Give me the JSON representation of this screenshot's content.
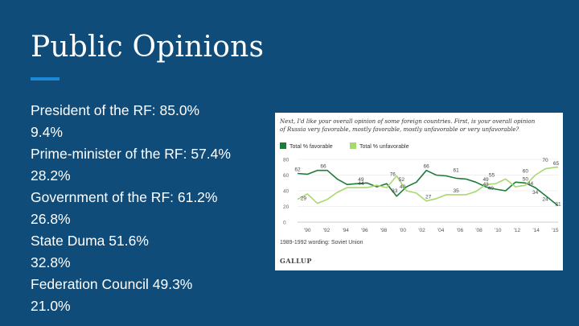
{
  "slide": {
    "title": "Public Opinions",
    "accent_color": "#1e88d8",
    "background": "#0f4c7a",
    "stats": [
      "President of the RF: 85.0%",
      "9.4%",
      "Prime-minister of the RF: 57.4%",
      "28.2%",
      "Government of the RF: 61.2%",
      "26.8%",
      "State Duma 51.6%",
      "32.8%",
      "Federation Council 49.3%",
      "21.0%"
    ]
  },
  "chart_data": {
    "type": "line",
    "title_line1": "Next, I'd like your overall opinion of some foreign countries. First, is your overall opinion",
    "title_line2": "of Russia very favorable, mostly favorable, mostly unfavorable or very unfavorable?",
    "footnote": "1989-1992 wording: Soviet Union",
    "source": "GALLUP",
    "x_tick_labels": [
      "'90",
      "'92",
      "'94",
      "'96",
      "'98",
      "'00",
      "'02",
      "'04",
      "'06",
      "'08",
      "'10",
      "'12",
      "'14",
      "'15"
    ],
    "y_tick_labels": [
      "80",
      "60",
      "40",
      "20",
      "0"
    ],
    "ylim": [
      0,
      80
    ],
    "xlim": [
      1989,
      2015.3
    ],
    "series": [
      {
        "name": "Total % favorable",
        "color": "#1e7b3c",
        "points": [
          [
            1989,
            62
          ],
          [
            1990,
            61
          ],
          [
            1991,
            66
          ],
          [
            1992,
            66
          ],
          [
            1993,
            55
          ],
          [
            1994,
            48
          ],
          [
            1995,
            49
          ],
          [
            1996,
            50
          ],
          [
            1997,
            45
          ],
          [
            1998,
            49
          ],
          [
            1999,
            33
          ],
          [
            2000,
            45
          ],
          [
            2001,
            51
          ],
          [
            2002,
            66
          ],
          [
            2003,
            60
          ],
          [
            2004,
            59
          ],
          [
            2005,
            56
          ],
          [
            2006,
            55
          ],
          [
            2007,
            51
          ],
          [
            2008,
            45
          ],
          [
            2009,
            42
          ],
          [
            2010,
            40
          ],
          [
            2011,
            51
          ],
          [
            2012,
            50
          ],
          [
            2013,
            44
          ],
          [
            2014,
            34
          ],
          [
            2015,
            24
          ],
          [
            2015.3,
            21
          ]
        ]
      },
      {
        "name": "Total % unfavorable",
        "color": "#a9d86e",
        "points": [
          [
            1989,
            29
          ],
          [
            1990,
            36
          ],
          [
            1991,
            24
          ],
          [
            1992,
            29
          ],
          [
            1993,
            38
          ],
          [
            1994,
            44
          ],
          [
            1995,
            44
          ],
          [
            1996,
            44
          ],
          [
            1997,
            47
          ],
          [
            1998,
            44
          ],
          [
            1999,
            59
          ],
          [
            2000,
            40
          ],
          [
            2001,
            37
          ],
          [
            2002,
            27
          ],
          [
            2003,
            30
          ],
          [
            2004,
            35
          ],
          [
            2005,
            35
          ],
          [
            2006,
            35
          ],
          [
            2007,
            39
          ],
          [
            2008,
            48
          ],
          [
            2009,
            49
          ],
          [
            2010,
            55
          ],
          [
            2011,
            45
          ],
          [
            2012,
            47
          ],
          [
            2013,
            60
          ],
          [
            2014,
            68
          ],
          [
            2015,
            70
          ],
          [
            2015.3,
            70
          ]
        ]
      }
    ],
    "annotations": [
      {
        "text": "62",
        "x": 1989,
        "y": 62,
        "series": 0
      },
      {
        "text": "66",
        "x": 1991.6,
        "y": 66,
        "series": 0
      },
      {
        "text": "49",
        "x": 1995.4,
        "y": 49,
        "series": 0
      },
      {
        "text": "44",
        "x": 1995.4,
        "y": 44,
        "series": 1
      },
      {
        "text": "76",
        "x": 1998.6,
        "y": 56,
        "series": 0
      },
      {
        "text": "52",
        "x": 1999.5,
        "y": 49,
        "series": 0
      },
      {
        "text": "33",
        "x": 1998.8,
        "y": 35,
        "series": 1
      },
      {
        "text": "40",
        "x": 1999.6,
        "y": 40,
        "series": 1
      },
      {
        "text": "66",
        "x": 2002,
        "y": 66,
        "series": 0
      },
      {
        "text": "27",
        "x": 2002.2,
        "y": 27,
        "series": 1
      },
      {
        "text": "61",
        "x": 2005,
        "y": 61,
        "series": 0
      },
      {
        "text": "35",
        "x": 2005,
        "y": 35,
        "series": 1
      },
      {
        "text": "49",
        "x": 2008,
        "y": 49,
        "series": 0
      },
      {
        "text": "55",
        "x": 2008.6,
        "y": 55,
        "series": 1
      },
      {
        "text": "43",
        "x": 2008,
        "y": 43,
        "series": 0
      },
      {
        "text": "40",
        "x": 2008.5,
        "y": 38,
        "series": 1
      },
      {
        "text": "60",
        "x": 2012,
        "y": 60,
        "series": 1
      },
      {
        "text": "50",
        "x": 2012,
        "y": 50,
        "series": 0
      },
      {
        "text": "44",
        "x": 2012.5,
        "y": 44,
        "series": 0
      },
      {
        "text": "34",
        "x": 2013,
        "y": 33,
        "series": 0
      },
      {
        "text": "24",
        "x": 2014,
        "y": 24,
        "series": 0
      },
      {
        "text": "70",
        "x": 2014,
        "y": 74,
        "series": 1
      },
      {
        "text": "65",
        "x": 2015.1,
        "y": 70,
        "series": 1
      },
      {
        "text": "21",
        "x": 2015.3,
        "y": 18,
        "series": 0
      },
      {
        "text": "29",
        "x": 1989.6,
        "y": 25,
        "series": 1
      }
    ]
  }
}
